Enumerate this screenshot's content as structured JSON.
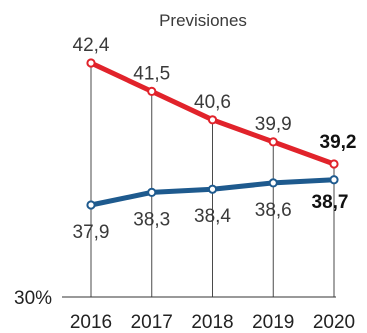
{
  "chart_data": {
    "type": "line",
    "title": "Previsiones",
    "x": [
      "2016",
      "2017",
      "2018",
      "2019",
      "2020"
    ],
    "baseline_label": "30%",
    "baseline_value": 30,
    "series": [
      {
        "values": [
          42.4,
          41.5,
          40.6,
          39.9,
          39.2
        ],
        "labels": [
          "42,4",
          "41,5",
          "40,6",
          "39,9",
          "39,2"
        ],
        "color": "#e1232b"
      },
      {
        "values": [
          37.9,
          38.3,
          38.4,
          38.6,
          38.7
        ],
        "labels": [
          "37,9",
          "38,3",
          "38,4",
          "38,6",
          "38,7"
        ],
        "color": "#1e5a8e"
      }
    ],
    "bold_last_label": true,
    "grid": false,
    "dropline_color": "#4a4a4a"
  }
}
